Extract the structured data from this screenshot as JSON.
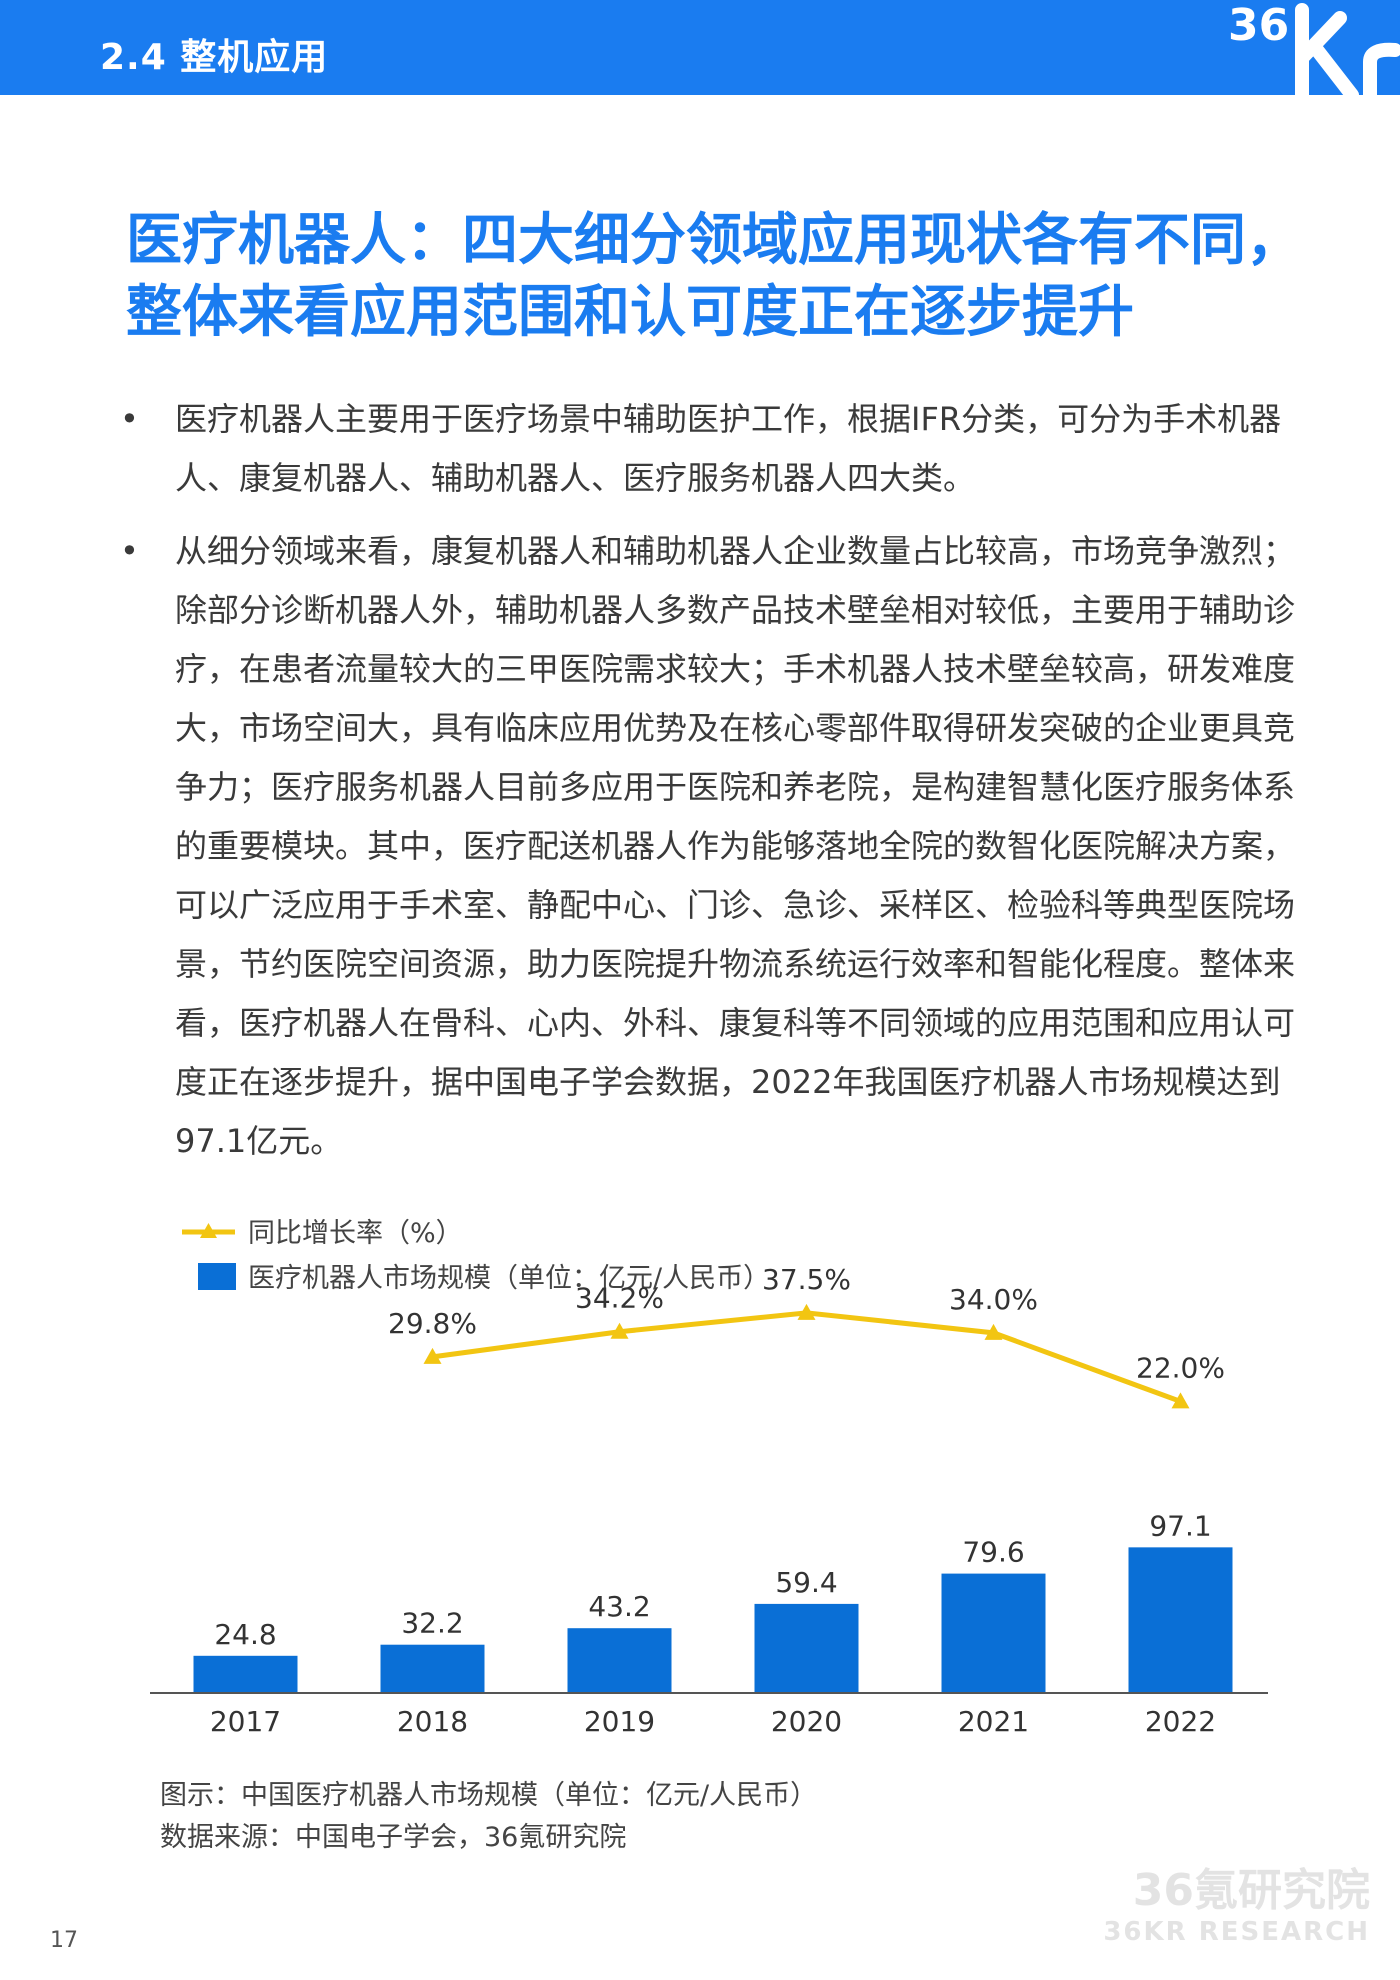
{
  "header": {
    "section": "2.4 整机应用",
    "logo": "36Kr"
  },
  "title": "医疗机器人：四大细分领域应用现状各有不同，整体来看应用范围和认可度正在逐步提升",
  "bullets": [
    "医疗机器人主要用于医疗场景中辅助医护工作，根据IFR分类，可分为手术机器人、康复机器人、辅助机器人、医疗服务机器人四大类。",
    "从细分领域来看，康复机器人和辅助机器人企业数量占比较高，市场竞争激烈；除部分诊断机器人外，辅助机器人多数产品技术壁垒相对较低，主要用于辅助诊疗，在患者流量较大的三甲医院需求较大；手术机器人技术壁垒较高，研发难度大，市场空间大，具有临床应用优势及在核心零部件取得研发突破的企业更具竞争力；医疗服务机器人目前多应用于医院和养老院，是构建智慧化医疗服务体系的重要模块。其中，医疗配送机器人作为能够落地全院的数智化医院解决方案，可以广泛应用于手术室、静配中心、门诊、急诊、采样区、检验科等典型医院场景，节约医院空间资源，助力医院提升物流系统运行效率和智能化程度。整体来看，医疗机器人在骨科、心内、外科、康复科等不同领域的应用范围和应用认可度正在逐步提升，据中国电子学会数据，2022年我国医疗机器人市场规模达到97.1亿元。"
  ],
  "chart_data": {
    "type": "bar",
    "categories": [
      "2017",
      "2018",
      "2019",
      "2020",
      "2021",
      "2022"
    ],
    "series": [
      {
        "name": "医疗机器人市场规模（单位：亿元/人民币）",
        "type": "bar",
        "values": [
          24.8,
          32.2,
          43.2,
          59.4,
          79.6,
          97.1
        ],
        "labels": [
          "24.8",
          "32.2",
          "43.2",
          "59.4",
          "79.6",
          "97.1"
        ],
        "color": "#0a6fd6"
      },
      {
        "name": "同比增长率（%）",
        "type": "line",
        "values": [
          null,
          29.8,
          34.2,
          37.5,
          34.0,
          22.0
        ],
        "labels": [
          "",
          "29.8%",
          "34.2%",
          "37.5%",
          "34.0%",
          "22.0%"
        ],
        "color": "#f2c512"
      }
    ],
    "legend_position": "top-left"
  },
  "captions": {
    "figure": "图示：中国医疗机器人市场规模（单位：亿元/人民币）",
    "source": "数据来源：中国电子学会，36氪研究院"
  },
  "page_number": "17",
  "watermark": {
    "cn": "36氪研究院",
    "en": "36KR RESEARCH"
  }
}
